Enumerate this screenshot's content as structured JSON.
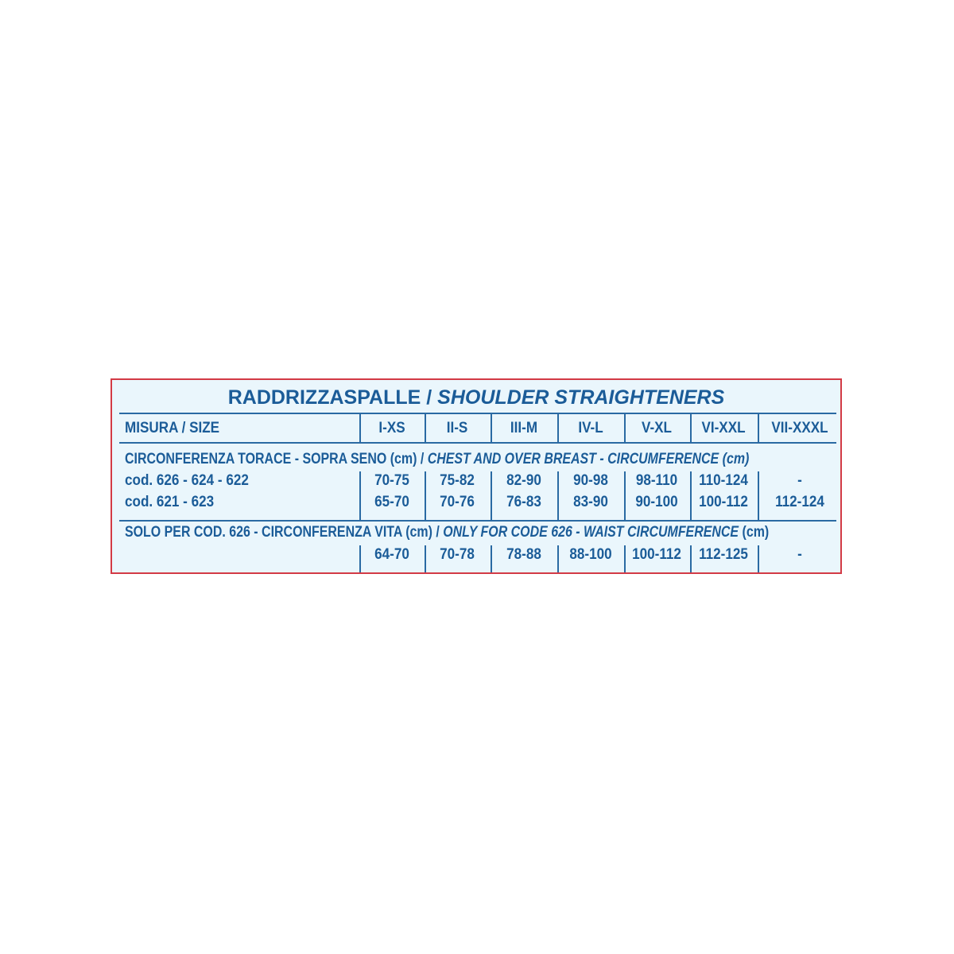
{
  "title": {
    "it": "RADDRIZZASPALLE / ",
    "en": "SHOULDER STRAIGHTENERS"
  },
  "header": {
    "label": "MISURA / SIZE",
    "sizes": [
      "I-XS",
      "II-S",
      "III-M",
      "IV-L",
      "V-XL",
      "VI-XXL",
      "VII-XXXL"
    ]
  },
  "chest": {
    "label_it": "CIRCONFERENZA TORACE - SOPRA SENO (cm) / ",
    "label_en": "CHEST AND OVER BREAST - CIRCUMFERENCE (cm)",
    "rows": [
      {
        "code": "cod. 626 - 624 - 622",
        "values": [
          "70-75",
          "75-82",
          "82-90",
          "90-98",
          "98-110",
          "110-124",
          "-"
        ]
      },
      {
        "code": "cod. 621 - 623",
        "values": [
          "65-70",
          "70-76",
          "76-83",
          "83-90",
          "90-100",
          "100-112",
          "112-124"
        ]
      }
    ]
  },
  "waist": {
    "label_it": "SOLO PER COD. 626 - CIRCONFERENZA VITA (cm)  / ",
    "label_en": "ONLY FOR CODE 626 - WAIST CIRCUMFERENCE",
    "label_unit": " (cm)",
    "values": [
      "64-70",
      "70-78",
      "78-88",
      "88-100",
      "100-112",
      "112-125",
      "-"
    ]
  },
  "colors": {
    "text": "#1b5c98",
    "border": "#d33a45",
    "background": "#eaf6fc"
  }
}
